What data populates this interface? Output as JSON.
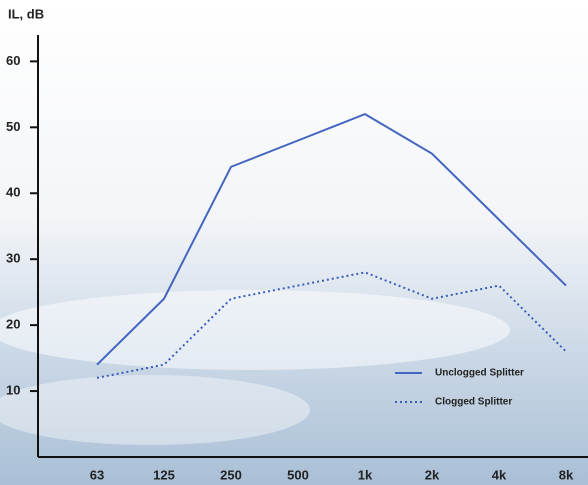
{
  "chart_data": {
    "type": "line",
    "y_label": "IL, dB",
    "categories": [
      "63",
      "125",
      "250",
      "500",
      "1k",
      "2k",
      "4k",
      "8k"
    ],
    "series": [
      {
        "name": "Unclogged Splitter",
        "color": "#4466c0",
        "dash": "solid",
        "values": [
          14,
          24,
          44,
          48,
          52,
          46,
          36,
          26
        ]
      },
      {
        "name": "Clogged Splitter",
        "color": "#3a5cbc",
        "dash": "dotted",
        "values": [
          12,
          14,
          24,
          26,
          28,
          24,
          26,
          16
        ]
      }
    ],
    "ylim": [
      0,
      64
    ],
    "yticks": [
      10,
      20,
      30,
      40,
      50,
      60
    ],
    "legend": "lower right"
  }
}
